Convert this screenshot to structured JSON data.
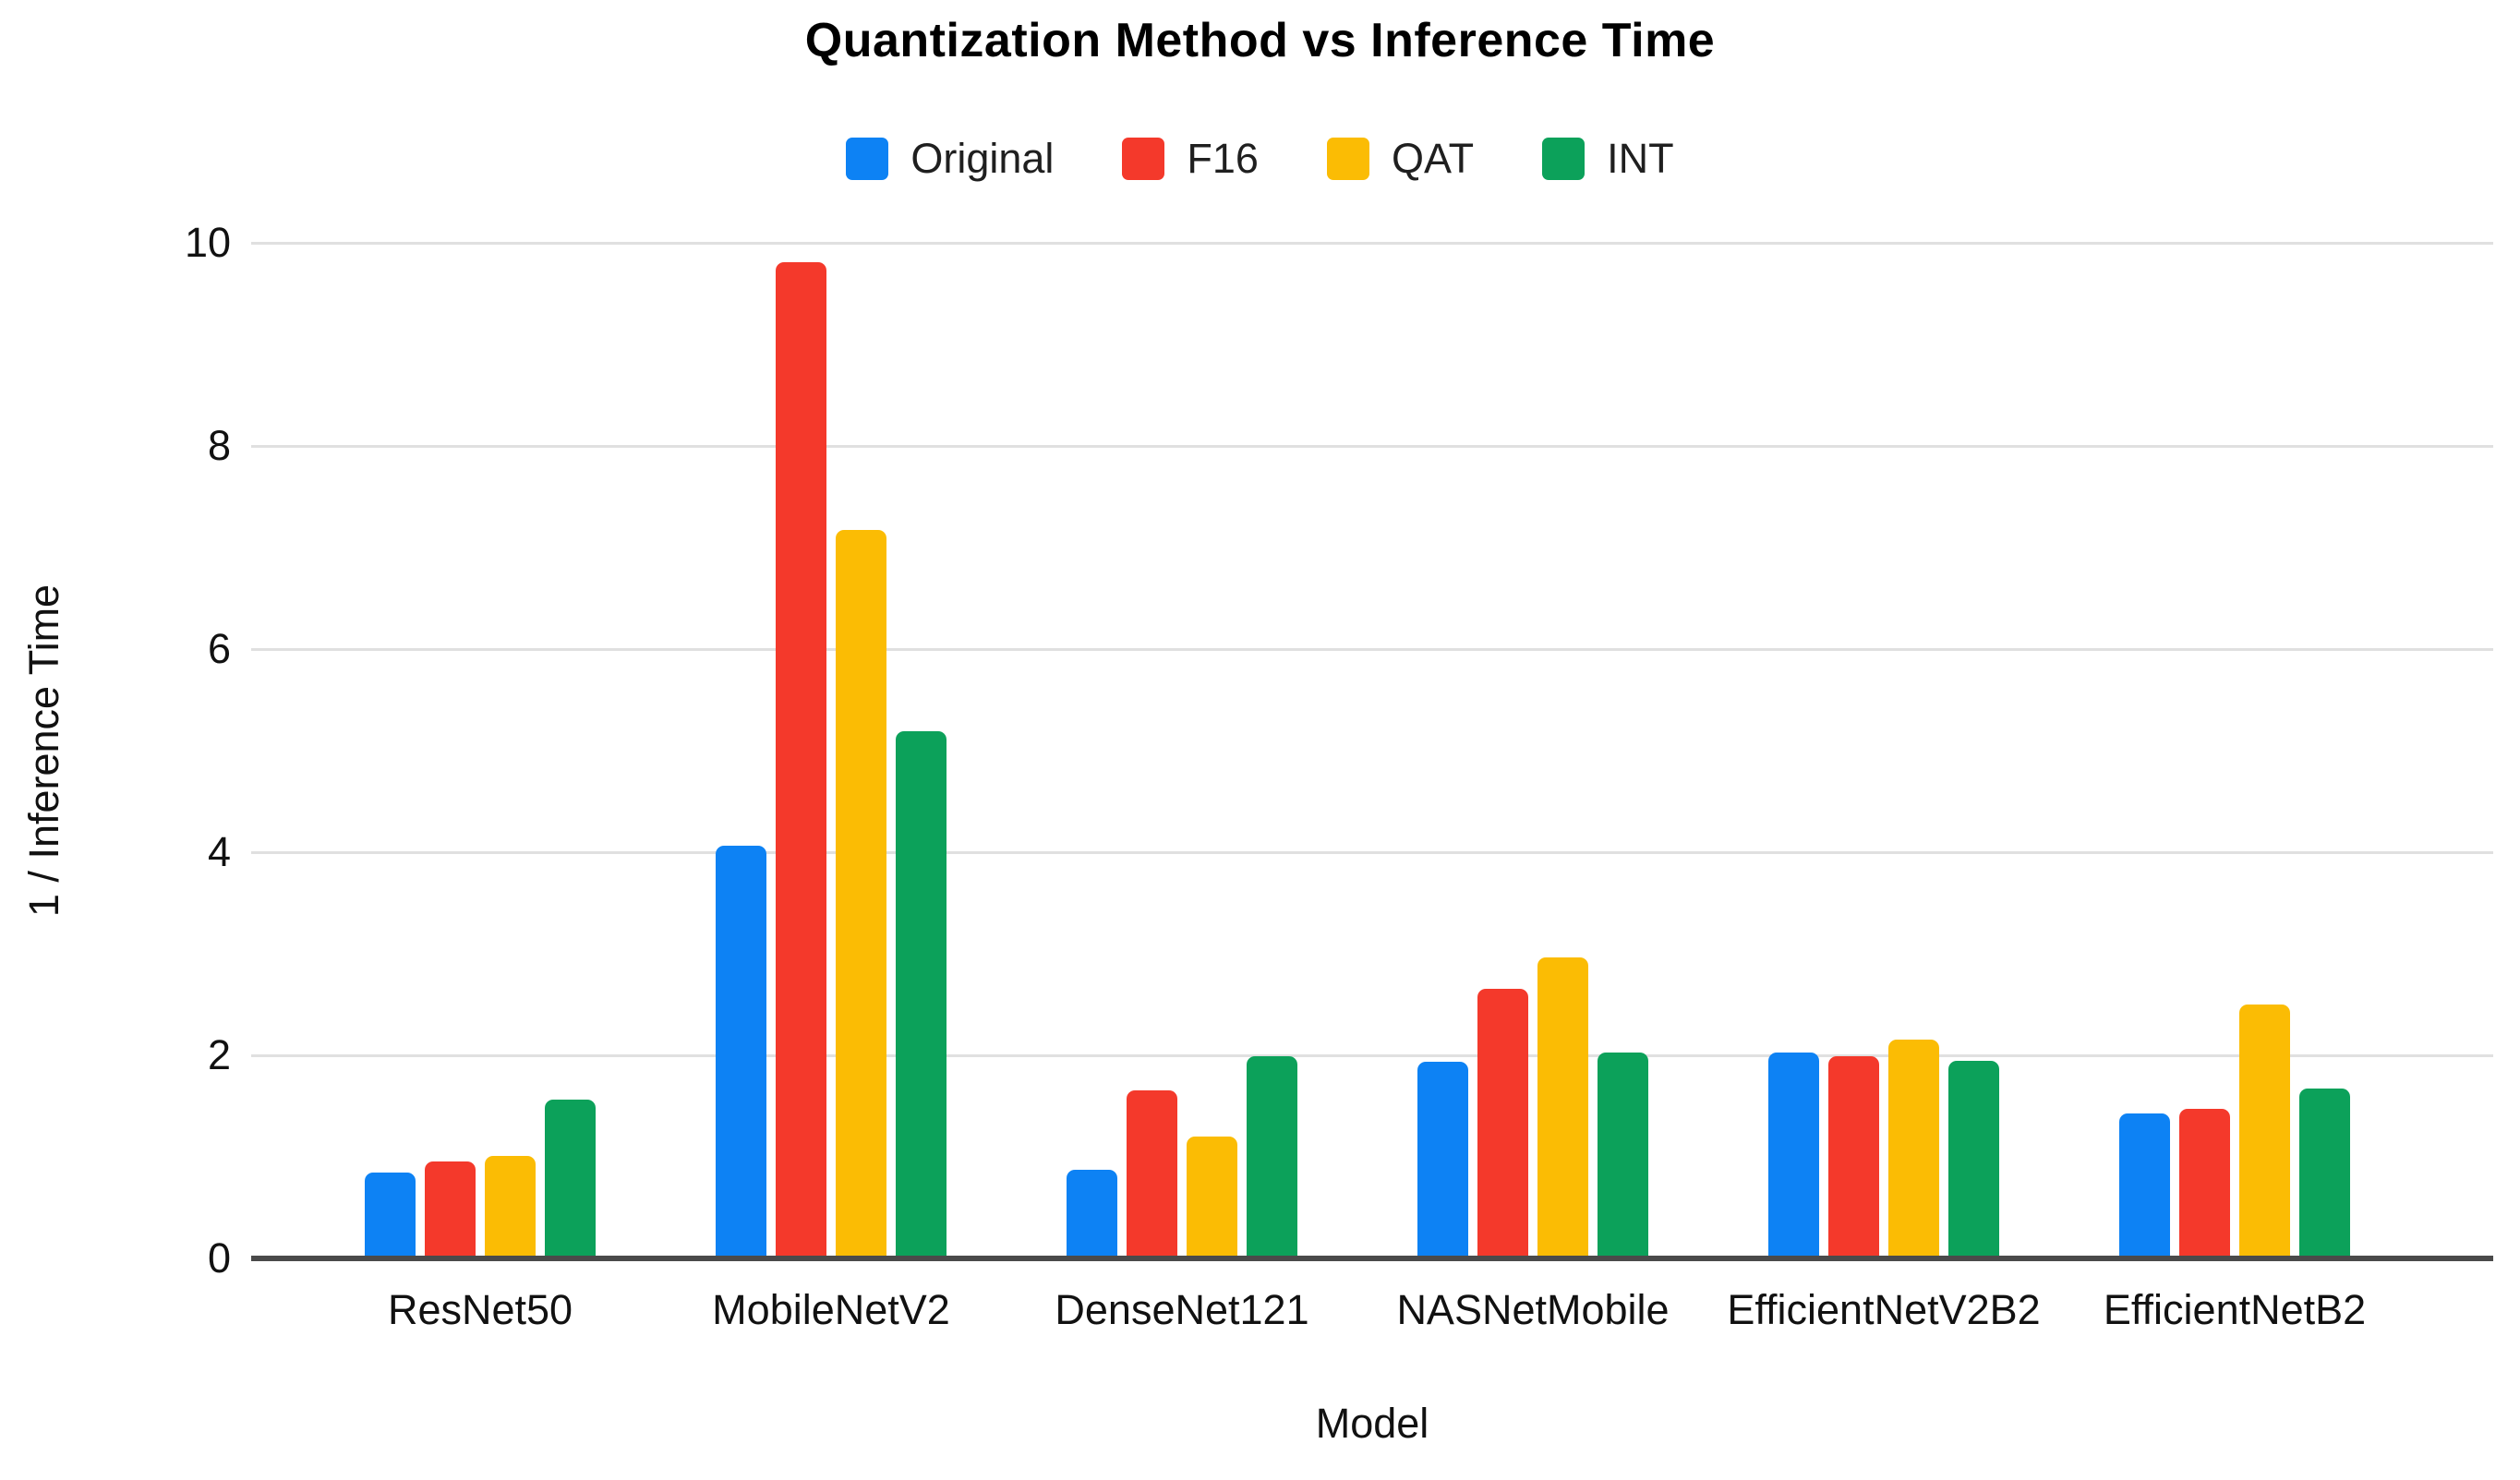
{
  "chart_data": {
    "type": "bar",
    "title": "Quantization Method vs Inference Time",
    "xlabel": "Model",
    "ylabel": "1 / Inference Time",
    "categories": [
      "ResNet50",
      "MobileNetV2",
      "DenseNet121",
      "NASNetMobile",
      "EfficientNetV2B2",
      "EfficientNetB2"
    ],
    "series": [
      {
        "name": "Original",
        "color": "#0d82f4",
        "values": [
          0.82,
          4.04,
          0.85,
          1.91,
          2.0,
          1.4
        ]
      },
      {
        "name": "F16",
        "color": "#f4392b",
        "values": [
          0.93,
          9.78,
          1.63,
          2.63,
          1.96,
          1.45
        ]
      },
      {
        "name": "QAT",
        "color": "#fbbc04",
        "values": [
          0.98,
          7.15,
          1.17,
          2.94,
          2.13,
          2.47
        ]
      },
      {
        "name": "INT",
        "color": "#0ca15a",
        "values": [
          1.54,
          5.16,
          1.96,
          2.0,
          1.92,
          1.65
        ]
      }
    ],
    "y_ticks": [
      0,
      2,
      4,
      6,
      8,
      10
    ],
    "ylim": [
      0,
      10
    ],
    "grid": true,
    "legend_position": "top",
    "gridline_color": "#e0e0e0",
    "axis_line_color": "#4a4a4a",
    "background_color": "#ffffff"
  }
}
